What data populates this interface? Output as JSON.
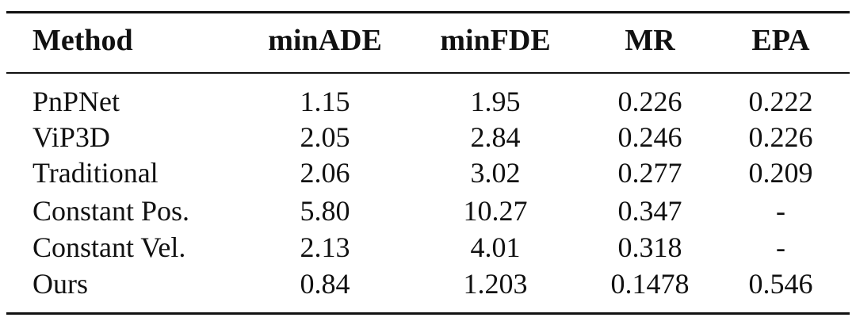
{
  "table": {
    "headers": [
      "Method",
      "minADE",
      "minFDE",
      "MR",
      "EPA"
    ],
    "rows": [
      [
        "PnPNet",
        "1.15",
        "1.95",
        "0.226",
        "0.222"
      ],
      [
        "ViP3D",
        "2.05",
        "2.84",
        "0.246",
        "0.226"
      ],
      [
        "Traditional",
        "2.06",
        "3.02",
        "0.277",
        "0.209"
      ],
      [
        "Constant Pos.",
        "5.80",
        "10.27",
        "0.347",
        "-"
      ],
      [
        "Constant Vel.",
        "2.13",
        "4.01",
        "0.318",
        "-"
      ],
      [
        "Ours",
        "0.84",
        "1.203",
        "0.1478",
        "0.546"
      ]
    ]
  }
}
